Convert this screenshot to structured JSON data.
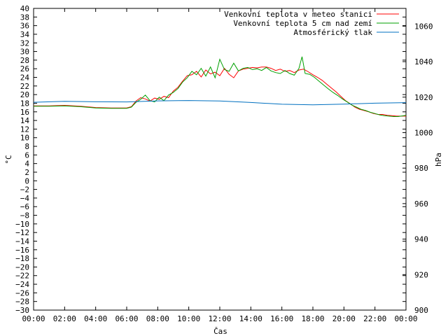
{
  "chart_data": {
    "type": "line",
    "xlabel": "Čas",
    "ylabel": "°C",
    "y2label": "hPa",
    "x_ticks": [
      "00:00",
      "02:00",
      "04:00",
      "06:00",
      "08:00",
      "10:00",
      "12:00",
      "14:00",
      "16:00",
      "18:00",
      "20:00",
      "22:00",
      "00:00"
    ],
    "xlim": [
      0,
      24
    ],
    "ylim": [
      -30,
      40
    ],
    "y_ticks": [
      40,
      38,
      36,
      34,
      32,
      30,
      28,
      26,
      24,
      22,
      20,
      18,
      16,
      14,
      12,
      10,
      8,
      6,
      4,
      2,
      0,
      -2,
      -4,
      -6,
      -8,
      -10,
      -12,
      -14,
      -16,
      -18,
      -20,
      -22,
      -24,
      -26,
      -28,
      -30
    ],
    "y2lim": [
      900,
      1070
    ],
    "y2_ticks": [
      1060,
      1040,
      1020,
      1000,
      980,
      960,
      940,
      920,
      900
    ],
    "legend_position": "top-right",
    "grid": false,
    "series": [
      {
        "name": "Venkovní teplota v meteo stanici",
        "color": "#ff0000",
        "axis": "y",
        "points": [
          [
            0,
            17.4
          ],
          [
            1,
            17.4
          ],
          [
            2,
            17.5
          ],
          [
            3,
            17.3
          ],
          [
            4,
            17
          ],
          [
            5,
            16.9
          ],
          [
            6,
            16.9
          ],
          [
            6.3,
            17.2
          ],
          [
            6.6,
            18.5
          ],
          [
            6.9,
            19.3
          ],
          [
            7.2,
            19
          ],
          [
            7.5,
            18.5
          ],
          [
            7.8,
            19.2
          ],
          [
            8.1,
            18.9
          ],
          [
            8.4,
            19.6
          ],
          [
            8.7,
            19.3
          ],
          [
            9,
            20.8
          ],
          [
            9.3,
            21.7
          ],
          [
            9.6,
            23.1
          ],
          [
            9.9,
            24.4
          ],
          [
            10.2,
            24.6
          ],
          [
            10.5,
            25.4
          ],
          [
            10.8,
            24.1
          ],
          [
            11.1,
            25.7
          ],
          [
            11.4,
            24.8
          ],
          [
            11.7,
            25.2
          ],
          [
            12,
            24.4
          ],
          [
            12.3,
            26.1
          ],
          [
            12.6,
            24.7
          ],
          [
            12.9,
            23.9
          ],
          [
            13.2,
            25.5
          ],
          [
            13.5,
            25.9
          ],
          [
            13.8,
            26.1
          ],
          [
            14.1,
            26.3
          ],
          [
            14.4,
            26.2
          ],
          [
            14.7,
            26.4
          ],
          [
            15,
            26.4
          ],
          [
            15.3,
            26.1
          ],
          [
            15.6,
            25.6
          ],
          [
            15.9,
            25.9
          ],
          [
            16.2,
            25.4
          ],
          [
            16.5,
            25.6
          ],
          [
            16.8,
            25.1
          ],
          [
            17.1,
            25.7
          ],
          [
            17.4,
            25.9
          ],
          [
            17.7,
            25.3
          ],
          [
            18,
            24.6
          ],
          [
            18.3,
            24
          ],
          [
            18.6,
            23.3
          ],
          [
            18.9,
            22.4
          ],
          [
            19.2,
            21.5
          ],
          [
            19.5,
            20.6
          ],
          [
            19.8,
            19.6
          ],
          [
            20.1,
            18.6
          ],
          [
            20.4,
            17.9
          ],
          [
            20.7,
            17.1
          ],
          [
            21,
            16.6
          ],
          [
            21.3,
            16.3
          ],
          [
            21.6,
            16
          ],
          [
            21.9,
            15.6
          ],
          [
            22.2,
            15.4
          ],
          [
            22.5,
            15.4
          ],
          [
            22.8,
            15.2
          ],
          [
            23.1,
            15.1
          ],
          [
            23.4,
            15
          ],
          [
            24,
            15
          ]
        ]
      },
      {
        "name": "Venkovní teplota 5 cm nad zemí",
        "color": "#00a000",
        "axis": "y",
        "points": [
          [
            0,
            17.3
          ],
          [
            1,
            17.3
          ],
          [
            2,
            17.4
          ],
          [
            3,
            17.2
          ],
          [
            4,
            16.9
          ],
          [
            5,
            16.8
          ],
          [
            6,
            16.8
          ],
          [
            6.3,
            17.1
          ],
          [
            6.6,
            18.2
          ],
          [
            6.9,
            18.9
          ],
          [
            7.2,
            19.9
          ],
          [
            7.5,
            18.6
          ],
          [
            7.8,
            18.3
          ],
          [
            8.1,
            19.4
          ],
          [
            8.4,
            18.6
          ],
          [
            8.7,
            19.9
          ],
          [
            9,
            20.5
          ],
          [
            9.3,
            21.4
          ],
          [
            9.6,
            22.9
          ],
          [
            9.9,
            23.9
          ],
          [
            10.2,
            25.4
          ],
          [
            10.5,
            24.6
          ],
          [
            10.8,
            26.1
          ],
          [
            11.1,
            24.3
          ],
          [
            11.4,
            26.4
          ],
          [
            11.7,
            23.9
          ],
          [
            12,
            28.2
          ],
          [
            12.3,
            25.8
          ],
          [
            12.6,
            25.4
          ],
          [
            12.9,
            27.3
          ],
          [
            13.2,
            25.5
          ],
          [
            13.5,
            26.1
          ],
          [
            13.8,
            26.3
          ],
          [
            14.1,
            25.8
          ],
          [
            14.4,
            26
          ],
          [
            14.7,
            25.6
          ],
          [
            15,
            26.3
          ],
          [
            15.3,
            25.5
          ],
          [
            15.6,
            25.1
          ],
          [
            15.9,
            24.9
          ],
          [
            16.2,
            25.6
          ],
          [
            16.5,
            24.9
          ],
          [
            16.8,
            24.5
          ],
          [
            17.1,
            26.1
          ],
          [
            17.3,
            28.8
          ],
          [
            17.5,
            24.9
          ],
          [
            17.8,
            24.7
          ],
          [
            18.1,
            24
          ],
          [
            18.4,
            23.1
          ],
          [
            18.7,
            22.2
          ],
          [
            19,
            21.3
          ],
          [
            19.3,
            20.5
          ],
          [
            19.6,
            19.8
          ],
          [
            19.9,
            19
          ],
          [
            20.2,
            18.3
          ],
          [
            20.5,
            17.6
          ],
          [
            20.8,
            17.1
          ],
          [
            21.1,
            16.6
          ],
          [
            21.4,
            16.3
          ],
          [
            21.7,
            15.9
          ],
          [
            22,
            15.6
          ],
          [
            22.3,
            15.3
          ],
          [
            22.6,
            15.1
          ],
          [
            22.9,
            15
          ],
          [
            23.2,
            14.9
          ],
          [
            23.5,
            14.9
          ],
          [
            24,
            15.2
          ]
        ]
      },
      {
        "name": "Atmosférický tlak",
        "color": "#0070c0",
        "axis": "y2",
        "points": [
          [
            0,
            1017.1
          ],
          [
            2,
            1017.6
          ],
          [
            4,
            1017.4
          ],
          [
            6,
            1017.3
          ],
          [
            8,
            1017.9
          ],
          [
            10,
            1018.1
          ],
          [
            12,
            1017.8
          ],
          [
            14,
            1017.0
          ],
          [
            16,
            1016.0
          ],
          [
            18,
            1015.7
          ],
          [
            20,
            1016.1
          ],
          [
            22,
            1016.6
          ],
          [
            24,
            1016.9
          ]
        ]
      }
    ]
  }
}
